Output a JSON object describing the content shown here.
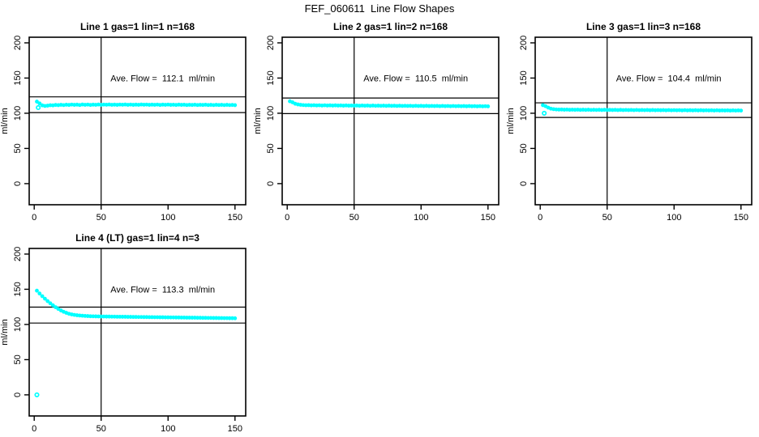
{
  "chart_data": {
    "type": "scatter",
    "title": "FEF_060611  Line Flow Shapes",
    "xlabel": "",
    "ylabel": "ml/min",
    "x_ticks": [
      0,
      50,
      100,
      150
    ],
    "y_ticks": [
      0,
      50,
      100,
      150,
      200
    ],
    "xlim": [
      0,
      150
    ],
    "ylim": [
      0,
      200
    ],
    "grid": "off",
    "legend": "none",
    "point_color": "#00FFFF",
    "line_color": "#000000",
    "reference_lines_note": "each panel: vertical line at x=50, horizontal lines at ave flow +/- 10%",
    "x": [
      2,
      4,
      6,
      8,
      10,
      12,
      14,
      16,
      18,
      20,
      22,
      24,
      26,
      28,
      30,
      32,
      34,
      36,
      38,
      40,
      42,
      44,
      46,
      48,
      50,
      52,
      54,
      56,
      58,
      60,
      62,
      64,
      66,
      68,
      70,
      72,
      74,
      76,
      78,
      80,
      82,
      84,
      86,
      88,
      90,
      92,
      94,
      96,
      98,
      100,
      102,
      104,
      106,
      108,
      110,
      112,
      114,
      116,
      118,
      120,
      122,
      124,
      126,
      128,
      130,
      132,
      134,
      136,
      138,
      140,
      142,
      144,
      146,
      148,
      150
    ],
    "annotation_anchor": {
      "x": 96,
      "y": 150
    },
    "vline_x": 50,
    "panels": [
      {
        "title": "Line 1 gas=1 lin=1 n=168",
        "annotation": "Ave. Flow =  112.1  ml/min",
        "ave_flow_ml_min": 112.1,
        "n": 168,
        "hlines": [
          123.3,
          100.9
        ],
        "y": [
          116.5,
          114.0,
          111.2,
          110.4,
          110.8,
          111.4,
          111.2,
          111.8,
          111.5,
          112.0,
          111.6,
          112.1,
          111.8,
          112.3,
          111.9,
          112.2,
          111.7,
          112.4,
          112.0,
          112.3,
          111.8,
          112.2,
          112.0,
          112.4,
          111.9,
          112.3,
          112.1,
          112.4,
          112.0,
          112.2,
          111.9,
          112.3,
          112.1,
          112.4,
          112.0,
          112.3,
          111.9,
          112.2,
          112.0,
          112.4,
          112.1,
          112.3,
          111.9,
          112.2,
          112.0,
          112.3,
          111.8,
          112.2,
          112.0,
          112.3,
          111.9,
          112.1,
          111.8,
          112.2,
          111.9,
          112.1,
          111.7,
          112.0,
          111.8,
          112.1,
          111.7,
          112.0,
          111.8,
          112.1,
          111.7,
          111.9,
          111.6,
          112.0,
          111.7,
          111.9,
          111.6,
          111.9,
          111.6,
          111.8,
          111.5
        ],
        "extra_points": [
          [
            3,
            108.0
          ]
        ]
      },
      {
        "title": "Line 2 gas=1 lin=2 n=168",
        "annotation": "Ave. Flow =  110.5  ml/min",
        "ave_flow_ml_min": 110.5,
        "n": 168,
        "hlines": [
          121.6,
          99.5
        ],
        "y": [
          117.0,
          115.5,
          113.5,
          112.5,
          112.0,
          111.6,
          111.4,
          111.5,
          111.2,
          111.4,
          111.1,
          111.3,
          111.0,
          111.3,
          111.0,
          111.2,
          110.9,
          111.2,
          110.9,
          111.1,
          110.8,
          111.1,
          110.8,
          111.0,
          110.8,
          111.0,
          110.7,
          111.0,
          110.7,
          110.9,
          110.6,
          110.9,
          110.6,
          110.8,
          110.6,
          110.8,
          110.5,
          110.8,
          110.5,
          110.7,
          110.4,
          110.7,
          110.4,
          110.6,
          110.4,
          110.6,
          110.3,
          110.6,
          110.3,
          110.5,
          110.2,
          110.5,
          110.2,
          110.4,
          110.2,
          110.4,
          110.1,
          110.4,
          110.1,
          110.3,
          110.0,
          110.3,
          110.0,
          110.2,
          110.0,
          110.2,
          109.9,
          110.2,
          109.9,
          110.1,
          109.8,
          110.1,
          109.8,
          110.0,
          109.8
        ],
        "extra_points": []
      },
      {
        "title": "Line 3 gas=1 lin=3 n=168",
        "annotation": "Ave. Flow =  104.4  ml/min",
        "ave_flow_ml_min": 104.4,
        "n": 168,
        "hlines": [
          114.8,
          94.0
        ],
        "y": [
          111.5,
          110.0,
          108.0,
          106.5,
          105.8,
          105.4,
          105.2,
          105.3,
          105.0,
          105.2,
          104.9,
          105.1,
          104.9,
          105.1,
          104.8,
          105.0,
          104.8,
          105.0,
          104.7,
          104.9,
          104.7,
          104.9,
          104.6,
          104.9,
          104.6,
          104.8,
          104.6,
          104.8,
          104.5,
          104.8,
          104.5,
          104.7,
          104.5,
          104.7,
          104.4,
          104.7,
          104.4,
          104.6,
          104.4,
          104.6,
          104.3,
          104.6,
          104.3,
          104.5,
          104.3,
          104.5,
          104.2,
          104.5,
          104.2,
          104.4,
          104.2,
          104.4,
          104.1,
          104.4,
          104.1,
          104.3,
          104.1,
          104.3,
          104.0,
          104.3,
          104.0,
          104.2,
          104.0,
          104.2,
          103.9,
          104.2,
          103.9,
          104.1,
          103.9,
          104.1,
          103.8,
          104.1,
          103.8,
          104.0,
          103.8
        ],
        "extra_points": [
          [
            3,
            100.0
          ]
        ]
      },
      {
        "title": "Line 4 (LT) gas=1 lin=4 n=3",
        "annotation": "Ave. Flow =  113.3  ml/min",
        "ave_flow_ml_min": 113.3,
        "n": 3,
        "hlines": [
          124.6,
          102.0
        ],
        "y": [
          148.0,
          144.0,
          140.2,
          136.6,
          133.2,
          130.1,
          127.2,
          124.5,
          122.1,
          119.9,
          118.0,
          116.5,
          115.2,
          114.3,
          113.6,
          113.1,
          112.7,
          112.4,
          112.1,
          111.9,
          111.7,
          111.6,
          111.5,
          111.4,
          111.3,
          111.3,
          111.2,
          111.2,
          111.1,
          111.1,
          111.0,
          111.0,
          110.9,
          110.9,
          110.8,
          110.8,
          110.7,
          110.7,
          110.6,
          110.6,
          110.5,
          110.5,
          110.4,
          110.4,
          110.3,
          110.3,
          110.2,
          110.2,
          110.1,
          110.1,
          110.0,
          110.0,
          109.9,
          109.9,
          109.8,
          109.8,
          109.7,
          109.7,
          109.6,
          109.6,
          109.5,
          109.5,
          109.4,
          109.4,
          109.3,
          109.3,
          109.2,
          109.2,
          109.1,
          109.1,
          109.0,
          109.0,
          108.9,
          108.9,
          108.8
        ],
        "extra_points": [
          [
            2,
            0.0
          ]
        ]
      }
    ]
  }
}
